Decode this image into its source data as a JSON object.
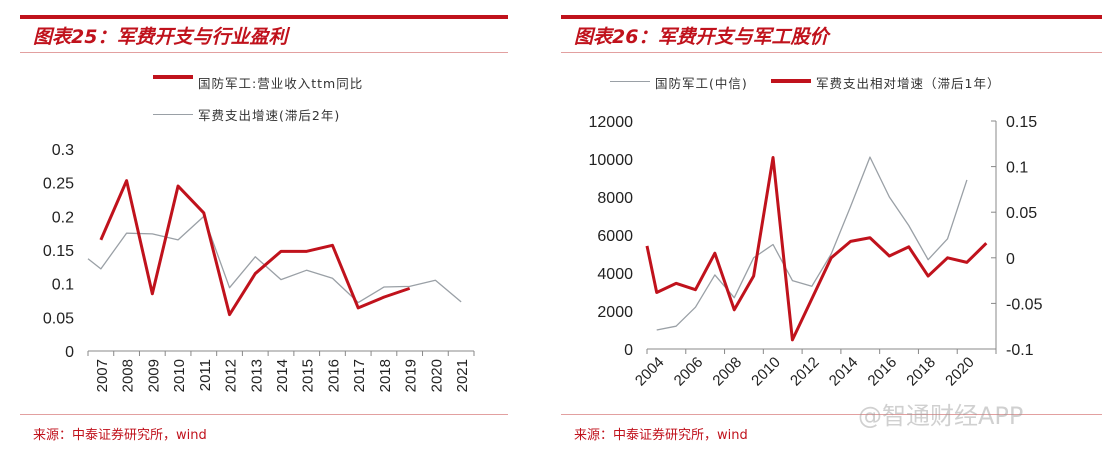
{
  "watermark": "@智通财经APP",
  "colors": {
    "red": "#c0121c",
    "gray": "#9aa0a6"
  },
  "chart_data": [
    {
      "type": "line",
      "title": "图表25：军费开支与行业盈利",
      "source": "来源：中泰证券研究所，wind",
      "categories": [
        "2007",
        "2008",
        "2009",
        "2010",
        "2011",
        "2012",
        "2013",
        "2014",
        "2015",
        "2016",
        "2017",
        "2018",
        "2019",
        "2020",
        "2021"
      ],
      "ylim": [
        0,
        0.3
      ],
      "yticks": [
        "0",
        "0.05",
        "0.1",
        "0.15",
        "0.2",
        "0.25",
        "0.3"
      ],
      "legend_placement": "top",
      "grid": false,
      "series": [
        {
          "name": "国防军工:营业收入ttm同比",
          "color": "#c0121c",
          "axis": "left",
          "values": [
            0.165,
            0.253,
            0.085,
            0.245,
            0.205,
            0.054,
            0.115,
            0.148,
            0.148,
            0.157,
            0.064,
            0.08,
            0.093,
            null,
            null
          ]
        },
        {
          "name": "军费支出增速(滞后2年)",
          "color": "#9aa0a6",
          "axis": "left",
          "left_edge_value": 0.137,
          "values": [
            0.122,
            0.175,
            0.174,
            0.165,
            0.2,
            0.094,
            0.14,
            0.106,
            0.12,
            0.108,
            0.072,
            0.095,
            0.096,
            0.105,
            0.073
          ]
        }
      ]
    },
    {
      "type": "line",
      "title": "图表26：军费开支与军工股价",
      "source": "来源：中泰证券研究所，wind",
      "categories": [
        "2004",
        "2005",
        "2006",
        "2007",
        "2008",
        "2009",
        "2010",
        "2011",
        "2012",
        "2013",
        "2014",
        "2015",
        "2016",
        "2017",
        "2018",
        "2019",
        "2020",
        "2021"
      ],
      "xtick_labels": [
        "2004",
        "2006",
        "2008",
        "2010",
        "2012",
        "2014",
        "2016",
        "2018",
        "2020"
      ],
      "ylim": [
        0,
        12000
      ],
      "yticks": [
        "0",
        "2000",
        "4000",
        "6000",
        "8000",
        "10000",
        "12000"
      ],
      "y2lim": [
        -0.1,
        0.15
      ],
      "y2ticks": [
        "-0.1",
        "-0.05",
        "0",
        "0.05",
        "0.1",
        "0.15"
      ],
      "legend_placement": "top",
      "grid": false,
      "series": [
        {
          "name": "国防军工(中信)",
          "color": "#9aa0a6",
          "axis": "left",
          "values": [
            1000,
            1200,
            2200,
            3900,
            2700,
            4800,
            5500,
            3600,
            3300,
            5000,
            7500,
            10100,
            8000,
            6500,
            4700,
            5800,
            8900,
            null
          ]
        },
        {
          "name": "军费支出相对增速（滞后1年）",
          "color": "#c0121c",
          "axis": "right",
          "left_edge_value": 0.013,
          "values": [
            -0.038,
            -0.028,
            -0.035,
            0.005,
            -0.057,
            -0.02,
            0.11,
            -0.09,
            -0.045,
            0.0,
            0.018,
            0.022,
            0.002,
            0.012,
            -0.02,
            0.0,
            -0.005,
            0.016
          ]
        }
      ]
    }
  ]
}
